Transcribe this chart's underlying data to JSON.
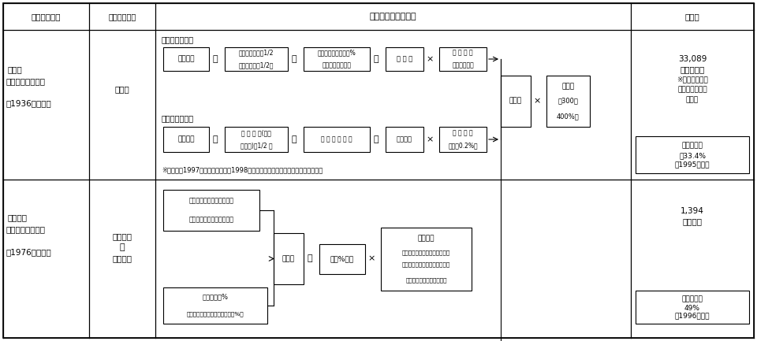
{
  "bg": "#ffffff",
  "headers": [
    "国名及び税目",
    "課税標準分類",
    "課　税　の　概　要",
    "備　考"
  ],
  "r1c1_lines": [
    "ドイツ",
    "営業税（市町村）",
    "",
    "（1936年創設）"
  ],
  "r1c2": "その他",
  "r1c4_lines": [
    "33,089",
    "百万マルク",
    "※連邦・州への",
    "　納付金分は除",
    "　く。"
  ],
  "r1c4_box": [
    "市町村税収",
    "の33.4%",
    "（1995年度）"
  ],
  "r2c1_lines": [
    "フランス",
    "職業税（地方税）",
    "",
    "（1976年創設）"
  ],
  "r2c2_lines": [
    "給与総額",
    "＋",
    "資産価値"
  ],
  "r2c4_lines": [
    "1,394",
    "億フラン"
  ],
  "r2c4_box": [
    "地方税収の",
    "49%",
    "（1996年度）"
  ],
  "note_r1": "※上記は、1997年までの営業税。1998年からは、営業収益税のみとされている。"
}
